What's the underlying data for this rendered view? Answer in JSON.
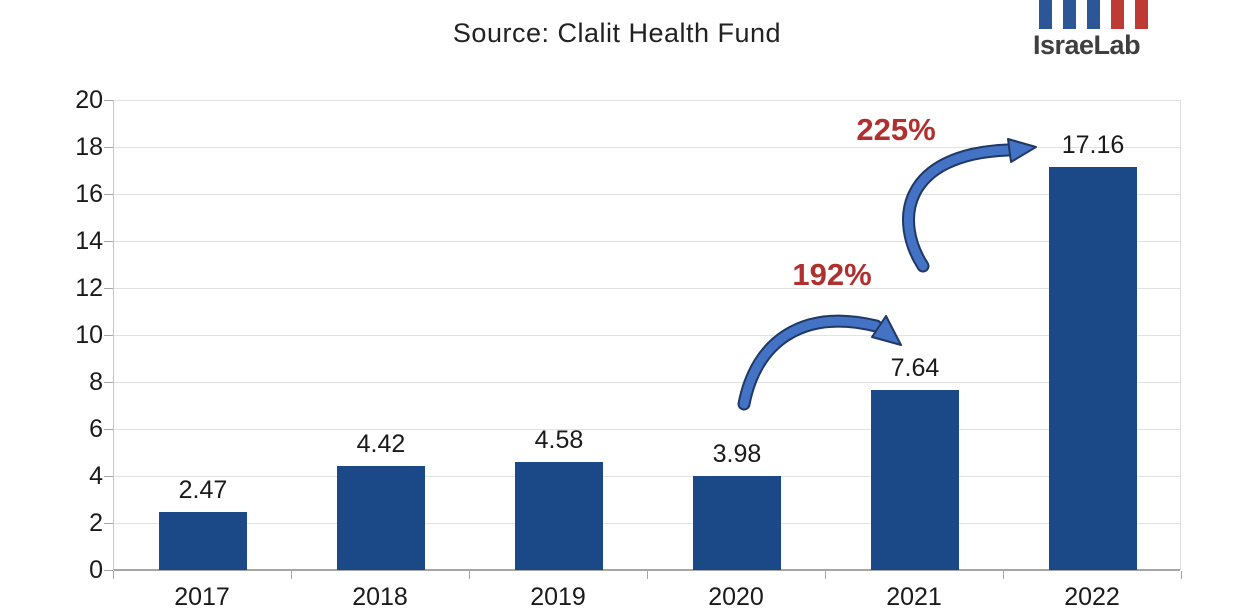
{
  "header": {
    "subtitle": "Source: Clalit Health Fund"
  },
  "logo": {
    "text": "IsraeLab",
    "bar_colors": [
      "#2b5796",
      "#2b5796",
      "#2b5796",
      "#be3a34",
      "#be3a34"
    ]
  },
  "chart_data": {
    "type": "bar",
    "categories": [
      "2017",
      "2018",
      "2019",
      "2020",
      "2021",
      "2022"
    ],
    "values": [
      2.47,
      4.42,
      4.58,
      3.98,
      7.64,
      17.16
    ],
    "value_labels": [
      "2.47",
      "4.42",
      "4.58",
      "3.98",
      "7.64",
      "17.16"
    ],
    "title": "",
    "subtitle": "Source: Clalit Health Fund",
    "xlabel": "",
    "ylabel": "",
    "ylim": [
      0,
      20
    ],
    "yticks": [
      0,
      2,
      4,
      6,
      8,
      10,
      12,
      14,
      16,
      18,
      20
    ],
    "grid": true,
    "legend": "none",
    "bar_color": "#1b4886",
    "annotation_color": "#b02f2f",
    "arrow_fill": "#4472c4",
    "arrow_outline": "#1f3864",
    "annotations": [
      {
        "label": "192%",
        "from": "2020",
        "to": "2021"
      },
      {
        "label": "225%",
        "from": "2021",
        "to": "2022"
      }
    ]
  }
}
